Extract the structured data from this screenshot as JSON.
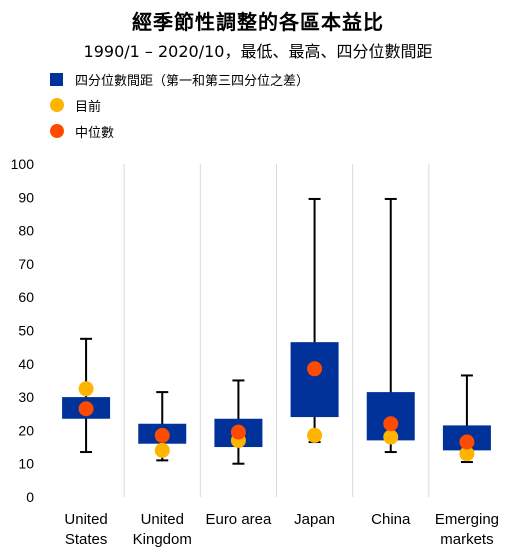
{
  "title": "經季節性調整的各區本益比",
  "subtitle": "1990/1 – 2020/10，最低、最高、四分位數間距",
  "legend": [
    {
      "label": "四分位數間距（第一和第三四分位之差）",
      "color": "#003299",
      "marker": "square"
    },
    {
      "label": "目前",
      "color": "#FFB400",
      "marker": "circle"
    },
    {
      "label": "中位數",
      "color": "#FF4B00",
      "marker": "circle"
    }
  ],
  "chart_data": {
    "type": "boxplot",
    "title": "經季節性調整的各區本益比",
    "subtitle": "1990/1 – 2020/10，最低、最高、四分位數間距",
    "ylim": [
      0,
      100
    ],
    "yticks": [
      0,
      10,
      20,
      30,
      40,
      50,
      60,
      70,
      80,
      90,
      100
    ],
    "grid": "vertical separators between categories",
    "legend_position": "top-left",
    "categories": [
      [
        "United",
        "States"
      ],
      [
        "United",
        "Kingdom"
      ],
      [
        "Euro area"
      ],
      [
        "Japan"
      ],
      [
        "China"
      ],
      [
        "Emerging",
        "markets"
      ]
    ],
    "series": [
      {
        "name": "四分位數間距（第一和第三四分位之差）",
        "color": "#003299",
        "min": [
          13.5,
          11.0,
          10.0,
          16.5,
          13.5,
          10.5
        ],
        "q1": [
          23.5,
          16.0,
          15.0,
          24.0,
          17.0,
          14.0
        ],
        "q3": [
          30.0,
          22.0,
          23.5,
          46.5,
          31.5,
          21.5
        ],
        "max": [
          47.5,
          31.5,
          35.0,
          89.5,
          89.5,
          36.5
        ]
      },
      {
        "name": "目前",
        "color": "#FFB400",
        "values": [
          32.5,
          14.0,
          17.0,
          18.5,
          18.0,
          13.0
        ]
      },
      {
        "name": "中位數",
        "color": "#FF4B00",
        "values": [
          26.5,
          18.5,
          19.5,
          38.5,
          22.0,
          16.5
        ]
      }
    ]
  }
}
